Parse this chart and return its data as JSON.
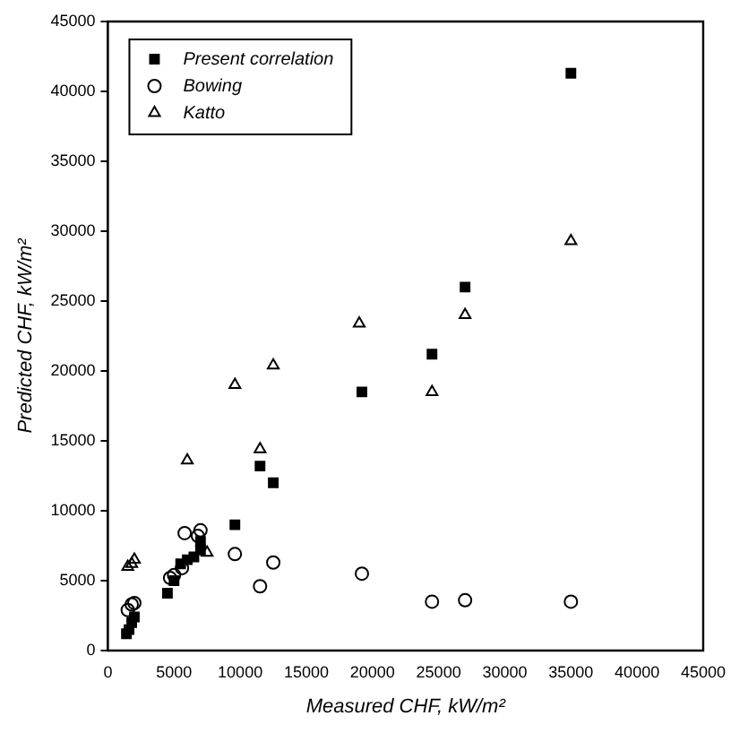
{
  "chart_data": {
    "type": "scatter",
    "xlabel": "Measured CHF, kW/m²",
    "ylabel": "Predicted CHF, kW/m²",
    "xlim": [
      0,
      45000
    ],
    "ylim": [
      0,
      45000
    ],
    "xticks": [
      0,
      5000,
      10000,
      15000,
      20000,
      25000,
      30000,
      35000,
      40000,
      45000
    ],
    "yticks": [
      0,
      5000,
      10000,
      15000,
      20000,
      25000,
      30000,
      35000,
      40000,
      45000
    ],
    "grid": false,
    "legend": "top left",
    "series": [
      {
        "name": "Present correlation",
        "color": "#000000",
        "marker": "square",
        "x": [
          1400,
          1600,
          1800,
          2000,
          4500,
          5000,
          5500,
          6000,
          6500,
          7000,
          7000,
          9600,
          11500,
          12500,
          19200,
          24500,
          27000,
          35000
        ],
        "values": [
          1200,
          1500,
          2000,
          2400,
          4100,
          5000,
          6200,
          6500,
          6700,
          7200,
          7800,
          9000,
          13200,
          12000,
          18500,
          21200,
          26000,
          41300
        ]
      },
      {
        "name": "Bowing",
        "color": "#000000",
        "marker": "circle",
        "x": [
          1500,
          1800,
          2000,
          4700,
          5000,
          5600,
          5800,
          6800,
          7000,
          9600,
          11500,
          12500,
          19200,
          24500,
          27000,
          35000
        ],
        "values": [
          2900,
          3300,
          3400,
          5200,
          5400,
          5900,
          8400,
          8200,
          8600,
          6900,
          4600,
          6300,
          5500,
          3500,
          3600,
          3500
        ]
      },
      {
        "name": "Katto",
        "color": "#000000",
        "marker": "triangle",
        "x": [
          1500,
          1800,
          2000,
          6000,
          7500,
          9600,
          11500,
          12500,
          19000,
          24500,
          27000,
          35000
        ],
        "values": [
          6000,
          6200,
          6500,
          13600,
          7000,
          19000,
          14400,
          20400,
          23400,
          18500,
          24000,
          29300
        ]
      }
    ]
  }
}
